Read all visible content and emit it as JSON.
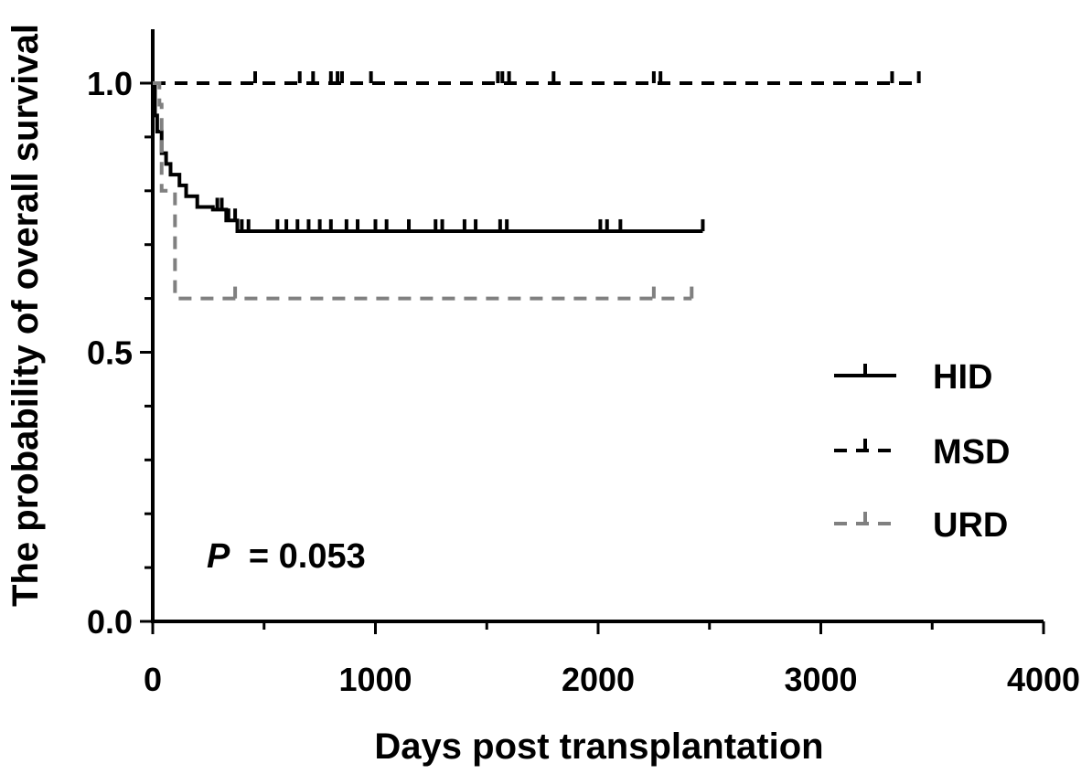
{
  "chart_data": {
    "type": "line",
    "subtype": "kaplan-meier",
    "title": "",
    "xlabel": "Days post transplantation",
    "ylabel": "The probability of overall survival",
    "xlim": [
      0,
      4000
    ],
    "ylim": [
      0,
      1.1
    ],
    "xticks": [
      0,
      1000,
      2000,
      3000,
      4000
    ],
    "xtick_labels": [
      "0",
      "1000",
      "2000",
      "3000",
      "4000"
    ],
    "yticks": [
      0.0,
      0.5,
      1.0
    ],
    "ytick_labels": [
      "0.0",
      "0.5",
      "1.0"
    ],
    "grid": false,
    "legend_position": "right",
    "annotation": {
      "p_label": "P",
      "p_value": "= 0.053"
    },
    "series": [
      {
        "name": "HID",
        "color": "#000000",
        "dash": "solid",
        "steps": [
          [
            0,
            1.0
          ],
          [
            10,
            0.94
          ],
          [
            20,
            0.91
          ],
          [
            40,
            0.87
          ],
          [
            60,
            0.85
          ],
          [
            80,
            0.83
          ],
          [
            120,
            0.81
          ],
          [
            150,
            0.79
          ],
          [
            200,
            0.77
          ],
          [
            270,
            0.765
          ],
          [
            330,
            0.745
          ],
          [
            380,
            0.725
          ],
          [
            2470,
            0.725
          ]
        ],
        "censored": [
          [
            290,
            0.765
          ],
          [
            310,
            0.765
          ],
          [
            340,
            0.745
          ],
          [
            370,
            0.745
          ],
          [
            400,
            0.725
          ],
          [
            430,
            0.725
          ],
          [
            560,
            0.725
          ],
          [
            600,
            0.725
          ],
          [
            650,
            0.725
          ],
          [
            700,
            0.725
          ],
          [
            750,
            0.725
          ],
          [
            800,
            0.725
          ],
          [
            870,
            0.725
          ],
          [
            920,
            0.725
          ],
          [
            1000,
            0.725
          ],
          [
            1050,
            0.725
          ],
          [
            1150,
            0.725
          ],
          [
            1270,
            0.725
          ],
          [
            1300,
            0.725
          ],
          [
            1400,
            0.725
          ],
          [
            1450,
            0.725
          ],
          [
            1560,
            0.725
          ],
          [
            1590,
            0.725
          ],
          [
            2010,
            0.725
          ],
          [
            2040,
            0.725
          ],
          [
            2100,
            0.725
          ],
          [
            2470,
            0.725
          ]
        ]
      },
      {
        "name": "MSD",
        "color": "#000000",
        "dash": "dashed",
        "steps": [
          [
            0,
            1.0
          ],
          [
            3440,
            1.0
          ]
        ],
        "censored": [
          [
            460,
            1.0
          ],
          [
            660,
            1.0
          ],
          [
            720,
            1.0
          ],
          [
            800,
            1.0
          ],
          [
            830,
            1.0
          ],
          [
            850,
            1.0
          ],
          [
            980,
            1.0
          ],
          [
            1550,
            1.0
          ],
          [
            1570,
            1.0
          ],
          [
            1600,
            1.0
          ],
          [
            1800,
            1.0
          ],
          [
            2250,
            1.0
          ],
          [
            2280,
            1.0
          ],
          [
            3320,
            1.0
          ],
          [
            3440,
            1.0
          ]
        ]
      },
      {
        "name": "URD",
        "color": "#808080",
        "dash": "dashed",
        "steps": [
          [
            0,
            1.0
          ],
          [
            30,
            0.96
          ],
          [
            40,
            0.8
          ],
          [
            100,
            0.6
          ],
          [
            2420,
            0.6
          ]
        ],
        "censored": [
          [
            370,
            0.6
          ],
          [
            2250,
            0.6
          ],
          [
            2420,
            0.6
          ]
        ]
      }
    ]
  }
}
